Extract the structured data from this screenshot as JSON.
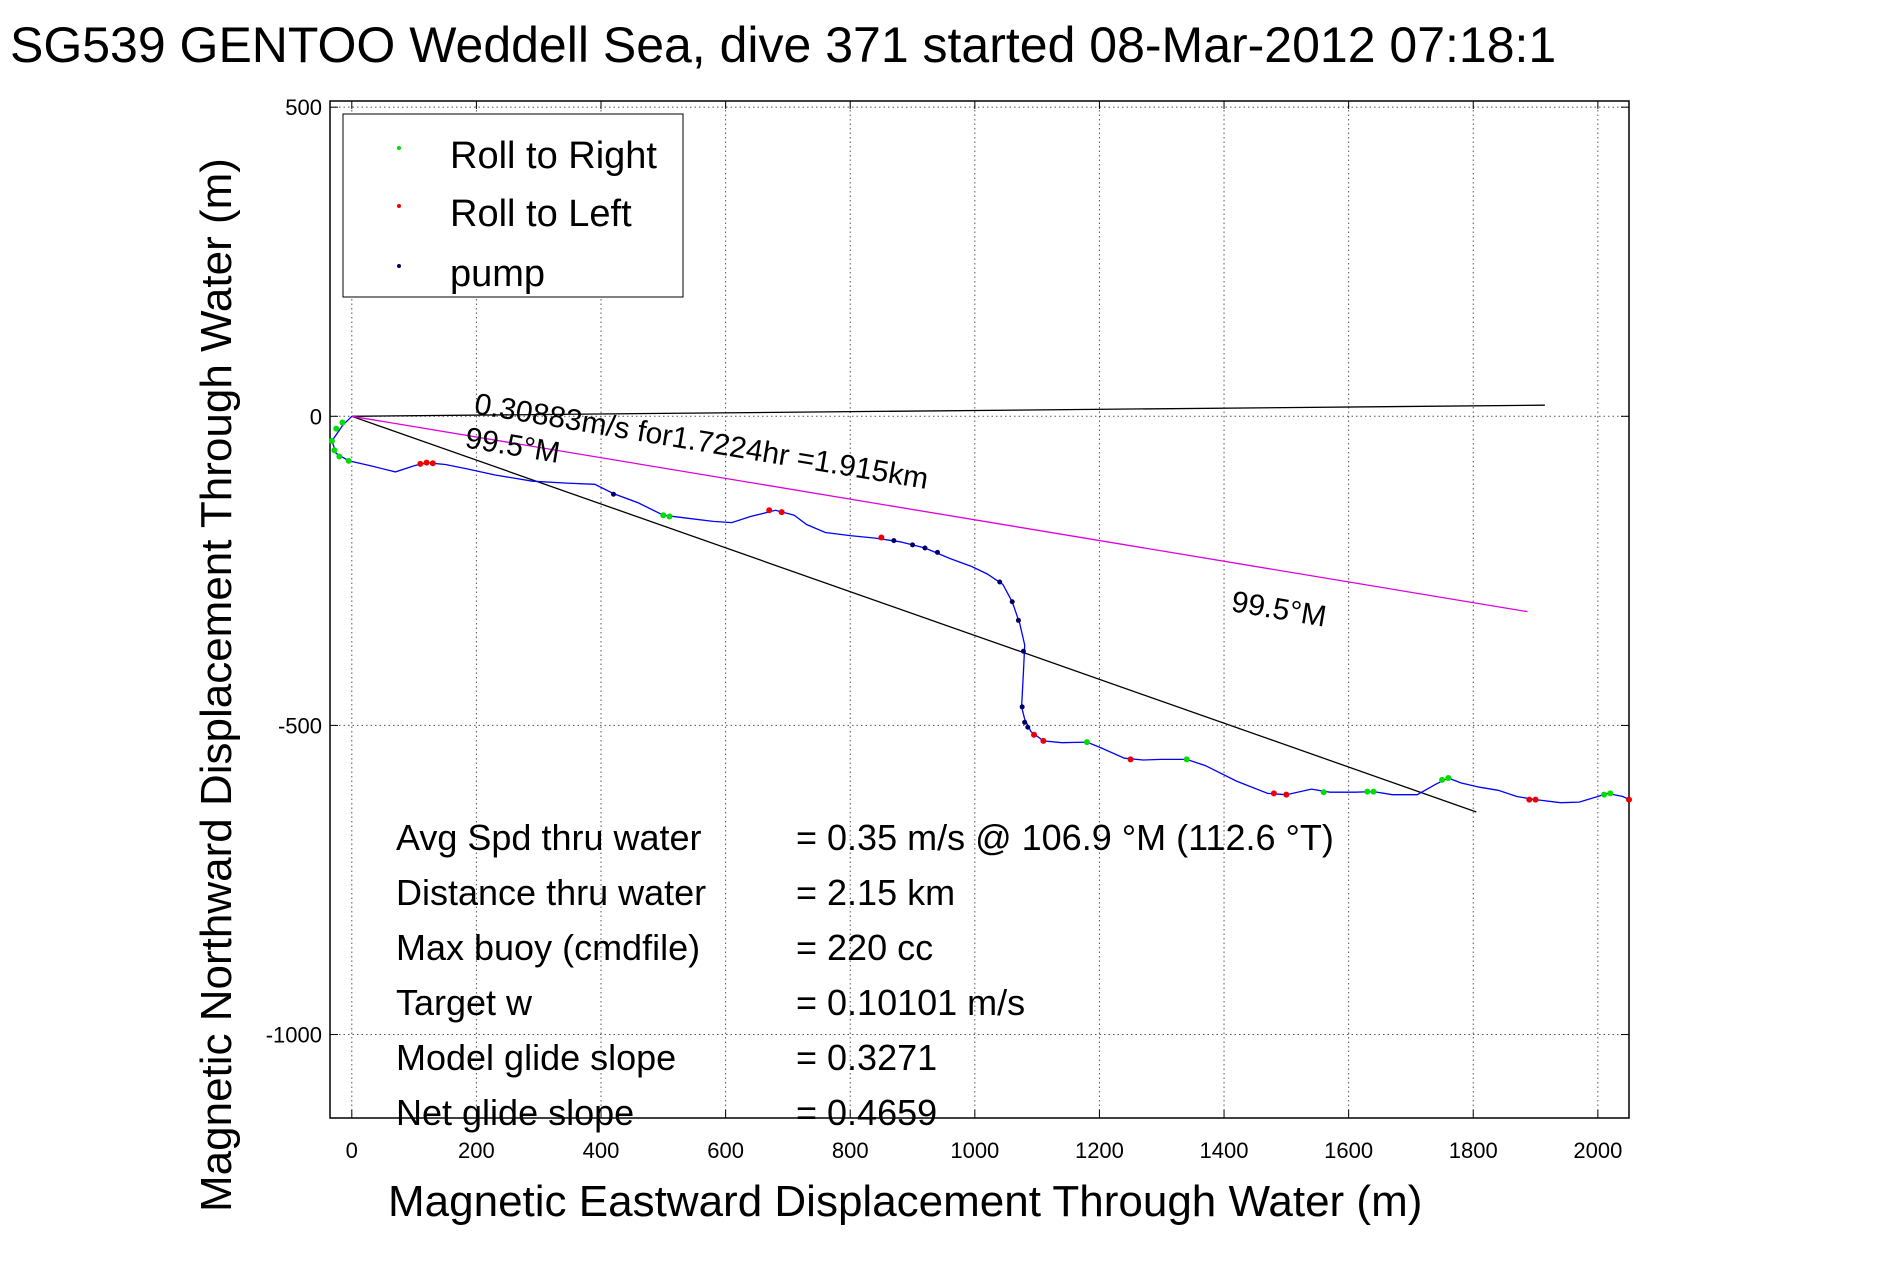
{
  "title": "SG539 GENTOO Weddell Sea, dive 371 started 08-Mar-2012 07:18:1",
  "chart_data": {
    "type": "scatter",
    "title": "SG539 GENTOO Weddell Sea, dive 371 started 08-Mar-2012 07:18:1",
    "xlabel": "Magnetic Eastward Displacement Through Water (m)",
    "ylabel": "Magnetic Northward Displacement Through Water (m)",
    "xlim": [
      -35,
      2050
    ],
    "ylim": [
      -1135,
      510
    ],
    "grid": true,
    "x_ticks": [
      0,
      200,
      400,
      600,
      800,
      1000,
      1200,
      1400,
      1600,
      1800,
      2000
    ],
    "y_ticks": [
      500,
      0,
      -500,
      -1000
    ],
    "x_tick_labels": [
      "0",
      "200",
      "400",
      "600",
      "800",
      "1000",
      "1200",
      "1400",
      "1600",
      "1800",
      "2000"
    ],
    "y_tick_labels": [
      "500",
      "0",
      "-500",
      "-1000"
    ],
    "legend": {
      "position": "top-left",
      "entries": [
        {
          "label": "Roll to Right",
          "color": "#00dd00"
        },
        {
          "label": "Roll to Left",
          "color": "#ee0000"
        },
        {
          "label": "pump",
          "color": "#000066"
        }
      ]
    },
    "track": {
      "color": "#0000ff",
      "points": [
        [
          0,
          0
        ],
        [
          -15,
          -15
        ],
        [
          -32,
          -40
        ],
        [
          -25,
          -60
        ],
        [
          -5,
          -72
        ],
        [
          30,
          -80
        ],
        [
          70,
          -90
        ],
        [
          100,
          -80
        ],
        [
          120,
          -75
        ],
        [
          150,
          -78
        ],
        [
          185,
          -85
        ],
        [
          230,
          -95
        ],
        [
          290,
          -105
        ],
        [
          345,
          -108
        ],
        [
          390,
          -110
        ],
        [
          420,
          -125
        ],
        [
          460,
          -140
        ],
        [
          500,
          -160
        ],
        [
          540,
          -165
        ],
        [
          580,
          -170
        ],
        [
          610,
          -172
        ],
        [
          640,
          -162
        ],
        [
          680,
          -152
        ],
        [
          710,
          -160
        ],
        [
          730,
          -175
        ],
        [
          760,
          -188
        ],
        [
          800,
          -193
        ],
        [
          840,
          -197
        ],
        [
          880,
          -203
        ],
        [
          920,
          -213
        ],
        [
          960,
          -230
        ],
        [
          995,
          -243
        ],
        [
          1020,
          -255
        ],
        [
          1045,
          -272
        ],
        [
          1060,
          -300
        ],
        [
          1072,
          -335
        ],
        [
          1080,
          -370
        ],
        [
          1078,
          -415
        ],
        [
          1075,
          -470
        ],
        [
          1080,
          -490
        ],
        [
          1090,
          -510
        ],
        [
          1110,
          -525
        ],
        [
          1140,
          -528
        ],
        [
          1180,
          -527
        ],
        [
          1200,
          -535
        ],
        [
          1240,
          -553
        ],
        [
          1270,
          -556
        ],
        [
          1300,
          -555
        ],
        [
          1340,
          -555
        ],
        [
          1370,
          -565
        ],
        [
          1420,
          -590
        ],
        [
          1470,
          -610
        ],
        [
          1500,
          -612
        ],
        [
          1540,
          -603
        ],
        [
          1570,
          -608
        ],
        [
          1610,
          -608
        ],
        [
          1640,
          -607
        ],
        [
          1670,
          -612
        ],
        [
          1710,
          -612
        ],
        [
          1740,
          -595
        ],
        [
          1760,
          -585
        ],
        [
          1780,
          -593
        ],
        [
          1810,
          -600
        ],
        [
          1840,
          -605
        ],
        [
          1870,
          -615
        ],
        [
          1900,
          -620
        ],
        [
          1940,
          -625
        ],
        [
          1970,
          -624
        ],
        [
          2000,
          -615
        ],
        [
          2015,
          -610
        ],
        [
          2040,
          -615
        ],
        [
          2050,
          -620
        ]
      ]
    },
    "roll_right_points": [
      [
        -32,
        -40
      ],
      [
        -28,
        -55
      ],
      [
        -20,
        -65
      ],
      [
        -5,
        -72
      ],
      [
        500,
        -160
      ],
      [
        510,
        -162
      ],
      [
        1180,
        -527
      ],
      [
        1340,
        -555
      ],
      [
        1560,
        -608
      ],
      [
        1630,
        -607
      ],
      [
        1640,
        -607
      ],
      [
        1750,
        -588
      ],
      [
        1760,
        -585
      ],
      [
        2010,
        -612
      ],
      [
        2020,
        -610
      ],
      [
        -25,
        -20
      ],
      [
        -15,
        -10
      ]
    ],
    "roll_left_points": [
      [
        110,
        -77
      ],
      [
        120,
        -75
      ],
      [
        130,
        -76
      ],
      [
        670,
        -152
      ],
      [
        690,
        -155
      ],
      [
        850,
        -196
      ],
      [
        1095,
        -515
      ],
      [
        1110,
        -525
      ],
      [
        1250,
        -555
      ],
      [
        1480,
        -610
      ],
      [
        1500,
        -612
      ],
      [
        1890,
        -620
      ],
      [
        1900,
        -620
      ],
      [
        2050,
        -620
      ]
    ],
    "pump_points": [
      [
        420,
        -126
      ],
      [
        870,
        -201
      ],
      [
        900,
        -208
      ],
      [
        920,
        -213
      ],
      [
        940,
        -220
      ],
      [
        1040,
        -268
      ],
      [
        1060,
        -300
      ],
      [
        1070,
        -330
      ],
      [
        1078,
        -380
      ],
      [
        1076,
        -470
      ],
      [
        1080,
        -495
      ],
      [
        1085,
        -503
      ]
    ],
    "reference_lines": [
      {
        "name": "north-line",
        "color": "#000000",
        "from": [
          0,
          0
        ],
        "to": [
          1915,
          18
        ]
      },
      {
        "name": "bearing-line",
        "color": "#000000",
        "from": [
          0,
          0
        ],
        "to": [
          1805,
          -640
        ]
      },
      {
        "name": "target-line",
        "color": "#dd00dd",
        "from": [
          0,
          0
        ],
        "to": [
          1887,
          -316
        ]
      }
    ],
    "annotations": [
      {
        "text": "0.30883m/s for1.7224hr =1.915km",
        "x": 195,
        "y": 5,
        "rotate": 9.5,
        "size": 30
      },
      {
        "text": "99.5°M",
        "x": 180,
        "y": -50,
        "rotate": 9.5,
        "size": 30
      },
      {
        "text": "99.5°M",
        "x": 1410,
        "y": -315,
        "rotate": 9.5,
        "size": 30
      }
    ],
    "stats": [
      {
        "label": "Avg Spd thru water",
        "value": "=  0.35 m/s @ 106.9 °M (112.6 °T)"
      },
      {
        "label": "Distance thru water",
        "value": "=  2.15 km"
      },
      {
        "label": "Max buoy (cmdfile)",
        "value": "= 220 cc"
      },
      {
        "label": "Target w",
        "value": "= 0.10101 m/s"
      },
      {
        "label": "Model glide slope",
        "value": "= 0.3271"
      },
      {
        "label": "Net glide slope",
        "value": "= 0.4659"
      }
    ]
  }
}
